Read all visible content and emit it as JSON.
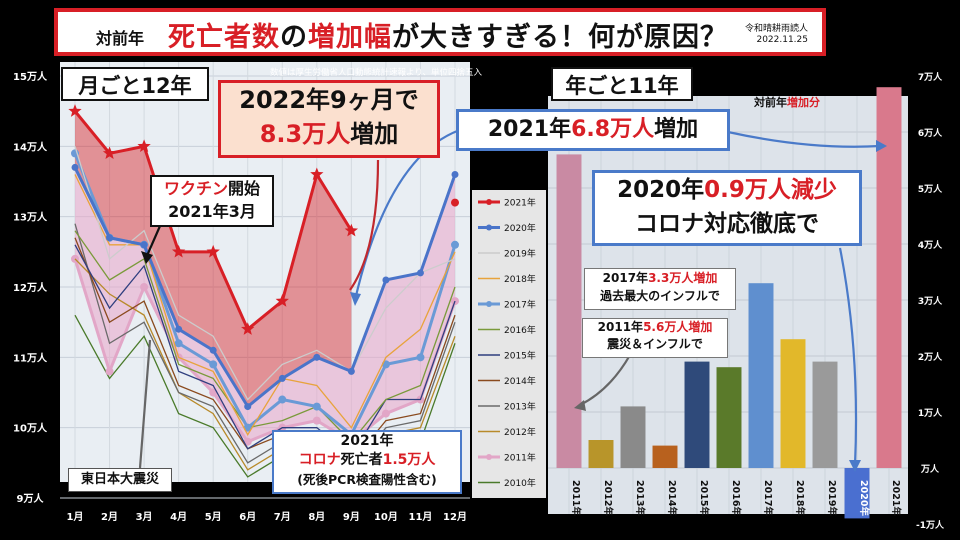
{
  "banner": {
    "prefix": "対前年",
    "title_a": "死亡者数",
    "title_b": "の",
    "title_c": "増加幅",
    "title_d": "が大きすぎる！何が原因？",
    "source_line1": "令和晴耕雨読人",
    "source_line2": "2022.11.25"
  },
  "note": "数値は厚生労働省人口動態統計速報より、単位四捨五入",
  "left_chart": {
    "title": "月ごと12年",
    "y_ticks": [
      "15万人",
      "14万人",
      "13万人",
      "12万人",
      "11万人",
      "10万人",
      "9万人"
    ],
    "x_ticks": [
      "1月",
      "2月",
      "3月",
      "4月",
      "5月",
      "6月",
      "7月",
      "8月",
      "9月",
      "10月",
      "11月",
      "12月"
    ]
  },
  "right_chart": {
    "title": "年ごと11年",
    "corner_prefix": "対前年",
    "corner_accent": "増加分",
    "y_ticks": [
      "7万人",
      "6万人",
      "5万人",
      "4万人",
      "3万人",
      "2万人",
      "1万人",
      "万人",
      "-1万人"
    ]
  },
  "callouts": {
    "c2022": {
      "l1": "2022年9ヶ月で",
      "l2a": "8.3万人",
      "l2b": "増加"
    },
    "c2021": {
      "a": "2021年",
      "b": "6.8万人",
      "c": "増加"
    },
    "c2020": {
      "l1a": "2020年",
      "l1b": "0.9万人減少",
      "l2": "コロナ対応徹底で"
    },
    "c2017": {
      "l1a": "2017年",
      "l1b": "3.3万人増加",
      "l2": "過去最大のインフルで"
    },
    "c2011": {
      "l1a": "2011年",
      "l1b": "5.6万人増加",
      "l2": "震災＆インフルで"
    },
    "vaccine": {
      "l1a": "ワクチン",
      "l1b": "開始",
      "l2": "2021年3月"
    },
    "covid": {
      "l1": "2021年",
      "l2a": "コロナ",
      "l2b": "死亡者",
      "l2c": "1.5万人",
      "l3": "(死後PCR検査陽性含む)"
    },
    "quake": "東日本大震災"
  },
  "chart_data": [
    {
      "type": "line",
      "title": "月ごと12年",
      "ylabel": "",
      "ylim": [
        9,
        15
      ],
      "categories": [
        "1月",
        "2月",
        "3月",
        "4月",
        "5月",
        "6月",
        "7月",
        "8月",
        "9月",
        "10月",
        "11月",
        "12月"
      ],
      "series": [
        {
          "name": "2021年",
          "values": [
            14.5,
            13.9,
            14.0,
            12.5,
            12.5,
            11.4,
            11.8,
            13.6,
            12.8,
            null,
            null,
            null
          ],
          "color": "#d81f26"
        },
        {
          "name": "2020年",
          "values": [
            13.7,
            12.7,
            12.6,
            11.4,
            11.1,
            10.3,
            10.7,
            11.0,
            10.8,
            12.1,
            12.2,
            13.6
          ],
          "color": "#4a74c9"
        },
        {
          "name": "2019年",
          "values": [
            14.0,
            12.4,
            12.8,
            11.6,
            11.3,
            10.4,
            10.9,
            11.1,
            10.8,
            11.7,
            12.2,
            12.4
          ],
          "color": "#cccccc"
        },
        {
          "name": "2018年",
          "values": [
            13.6,
            12.6,
            12.6,
            11.0,
            10.8,
            9.9,
            10.7,
            10.6,
            10.0,
            11.0,
            11.4,
            12.5
          ],
          "color": "#e8a33c"
        },
        {
          "name": "2017年",
          "values": [
            13.9,
            12.7,
            12.6,
            11.2,
            10.9,
            10.0,
            10.4,
            10.3,
            9.9,
            10.9,
            11.0,
            12.6
          ],
          "color": "#6a9ad6"
        },
        {
          "name": "2016年",
          "values": [
            12.8,
            12.1,
            12.4,
            10.9,
            10.7,
            10.0,
            10.1,
            10.3,
            9.8,
            10.4,
            10.6,
            12.0
          ],
          "color": "#7a9a3a"
        },
        {
          "name": "2015年",
          "values": [
            12.6,
            11.7,
            12.3,
            10.8,
            10.6,
            9.7,
            10.0,
            10.0,
            9.6,
            10.4,
            10.4,
            11.8
          ],
          "color": "#2f3f7f"
        },
        {
          "name": "2014年",
          "values": [
            12.7,
            11.5,
            11.8,
            10.6,
            10.4,
            9.7,
            9.9,
            9.9,
            9.5,
            10.1,
            10.2,
            11.6
          ],
          "color": "#8a4a1e"
        },
        {
          "name": "2013年",
          "values": [
            12.9,
            11.2,
            11.5,
            10.5,
            10.3,
            9.5,
            9.8,
            9.8,
            9.4,
            10.0,
            10.1,
            11.5
          ],
          "color": "#6a6a6a"
        },
        {
          "name": "2012年",
          "values": [
            12.4,
            11.9,
            11.6,
            10.5,
            10.2,
            9.4,
            9.7,
            9.7,
            9.4,
            9.9,
            10.0,
            11.3
          ],
          "color": "#b88a2a"
        },
        {
          "name": "2011年",
          "values": [
            12.4,
            10.8,
            12.0,
            11.0,
            10.5,
            9.8,
            10.0,
            10.1,
            9.8,
            10.2,
            10.4,
            11.8
          ],
          "color": "#e2a6c7"
        },
        {
          "name": "2010年",
          "values": [
            11.6,
            10.7,
            11.3,
            10.2,
            10.0,
            9.3,
            9.6,
            9.8,
            9.3,
            9.7,
            9.8,
            11.2
          ],
          "color": "#4a7a2a"
        }
      ]
    },
    {
      "type": "bar",
      "title": "年ごと11年",
      "ylabel": "",
      "ylim": [
        -1,
        7
      ],
      "categories": [
        "2011年",
        "2012年",
        "2013年",
        "2014年",
        "2015年",
        "2016年",
        "2017年",
        "2018年",
        "2019年",
        "2020年",
        "2021年"
      ],
      "values": [
        5.6,
        0.5,
        1.1,
        0.4,
        1.9,
        1.8,
        3.3,
        2.3,
        1.9,
        -0.9,
        6.8
      ],
      "colors": [
        "#c98aa3",
        "#b8952a",
        "#8a8a8a",
        "#b8611e",
        "#2f4a7a",
        "#5a7a2a",
        "#5f8fcf",
        "#e2b82a",
        "#9a9a9a",
        "#4a6fd0",
        "#d9798c"
      ]
    }
  ]
}
